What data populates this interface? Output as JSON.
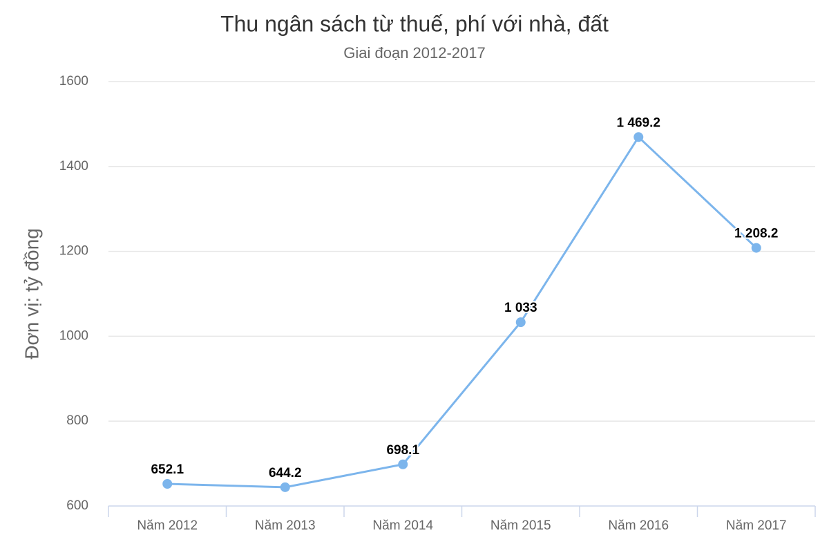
{
  "chart_data": {
    "type": "line",
    "title": "Thu ngân sách từ thuế, phí với nhà, đất",
    "subtitle": "Giai đoạn 2012-2017",
    "y_label": "Đơn vị: tỷ đồng",
    "categories": [
      "Năm 2012",
      "Năm 2013",
      "Năm 2014",
      "Năm 2015",
      "Năm 2016",
      "Năm 2017"
    ],
    "values": [
      652.1,
      644.2,
      698.1,
      1033,
      1469.2,
      1208.2
    ],
    "value_labels": [
      "652.1",
      "644.2",
      "698.1",
      "1 033",
      "1 469.2",
      "1 208.2"
    ],
    "color": "#7cb5ec",
    "ylim": [
      600,
      1600
    ],
    "yticks": [
      600,
      800,
      1000,
      1200,
      1400,
      1600
    ],
    "grid": true
  }
}
